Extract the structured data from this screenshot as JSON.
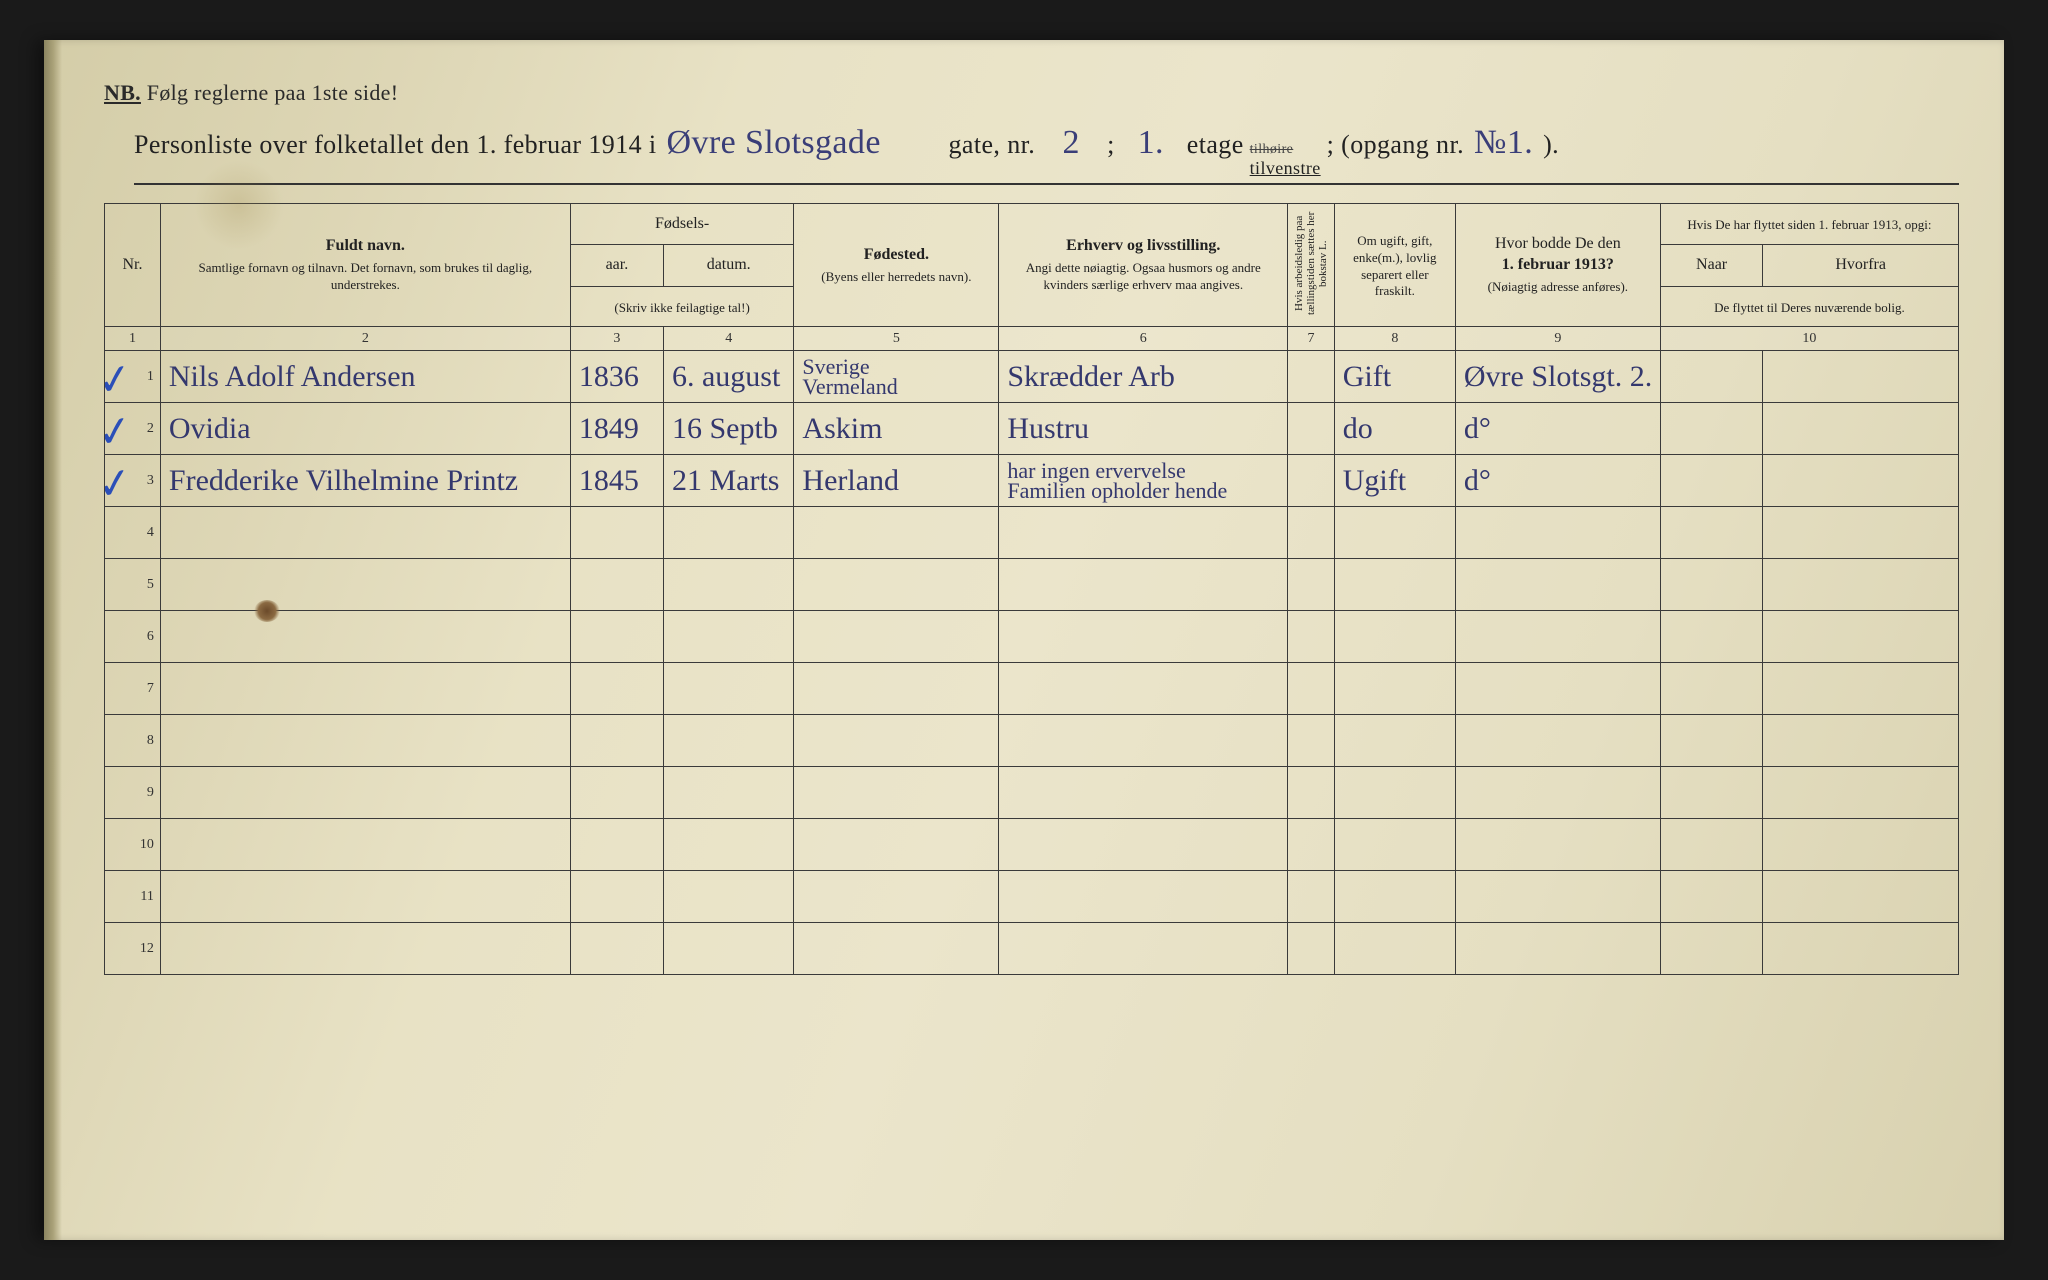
{
  "page_bg_gradient": [
    "#d4cda8",
    "#e8e2c5",
    "#d8d1af"
  ],
  "ink_printed": "#2a2a2a",
  "ink_handwritten": "#34386e",
  "ink_checkmark": "#2b4fb8",
  "border_color": "#3a3a3a",
  "nb_prefix": "NB.",
  "nb_text": "Følg reglerne paa 1ste side!",
  "title": {
    "prefix": "Personliste over folketallet den 1. februar 1914 i",
    "street_hand": "Øvre Slotsgade",
    "gate_label": "gate, nr.",
    "gate_nr": "2",
    "semicolon": ";",
    "etage_nr": "1.",
    "etage_label": "etage",
    "tilhoire_strike": "tilhøire",
    "tilvenstre": "tilvenstre",
    "opgang_label": "; (opgang nr.",
    "opgang_nr": "№1.",
    "close": ")."
  },
  "colnums": [
    "1",
    "2",
    "3",
    "4",
    "5",
    "6",
    "7",
    "8",
    "9",
    "10"
  ],
  "headers": {
    "nr": "Nr.",
    "name_title": "Fuldt navn.",
    "name_sub": "Samtlige fornavn og tilnavn.  Det fornavn, som brukes til daglig, understrekes.",
    "fodsels": "Fødsels-",
    "aar": "aar.",
    "datum": "datum.",
    "fodsels_note": "(Skriv ikke feilagtige tal!)",
    "fodested": "Fødested.",
    "fodested_sub": "(Byens eller herredets navn).",
    "erhverv": "Erhverv og livsstilling.",
    "erhverv_sub": "Angi dette nøiagtig. Ogsaa husmors og andre kvinders særlige erhverv maa angives.",
    "col7_vert": "Hvis arbeidsledig paa tællingstiden sættes her bokstav L.",
    "col8": "Om ugift, gift, enke(m.), lovlig separert eller fraskilt.",
    "col9_a": "Hvor bodde De den",
    "col9_b": "1. februar 1913?",
    "col9_sub": "(Nøiagtig adresse anføres).",
    "col10_top": "Hvis De har flyttet siden 1. februar 1913, opgi:",
    "col10_naar": "Naar",
    "col10_hvorfra": "Hvorfra",
    "col10_sub": "De flyttet til Deres nuværende bolig."
  },
  "rows": [
    {
      "nr": "1",
      "check": true,
      "name": "Nils Adolf Andersen",
      "aar": "1836",
      "datum": "6. august",
      "fodested_l1": "Sverige",
      "fodested_l2": "Vermeland",
      "erhverv": "Skrædder Arb",
      "status": "Gift",
      "addr1913": "Øvre Slotsgt. 2.",
      "naar": "",
      "hvorfra": ""
    },
    {
      "nr": "2",
      "check": true,
      "name": "Ovidia",
      "aar": "1849",
      "datum": "16 Septb",
      "fodested_l1": "Askim",
      "fodested_l2": "",
      "erhverv": "Hustru",
      "status": "do",
      "addr1913": "d°",
      "naar": "",
      "hvorfra": ""
    },
    {
      "nr": "3",
      "check": true,
      "name": "Fredderike Vilhelmine Printz",
      "aar": "1845",
      "datum": "21 Marts",
      "fodested_l1": "Herland",
      "fodested_l2": "",
      "erhverv_l1": "har ingen ervervelse",
      "erhverv_l2": "Familien opholder hende",
      "status": "Ugift",
      "addr1913": "d°",
      "naar": "",
      "hvorfra": ""
    },
    {
      "nr": "4"
    },
    {
      "nr": "5"
    },
    {
      "nr": "6"
    },
    {
      "nr": "7"
    },
    {
      "nr": "8"
    },
    {
      "nr": "9"
    },
    {
      "nr": "10"
    },
    {
      "nr": "11"
    },
    {
      "nr": "12"
    }
  ]
}
